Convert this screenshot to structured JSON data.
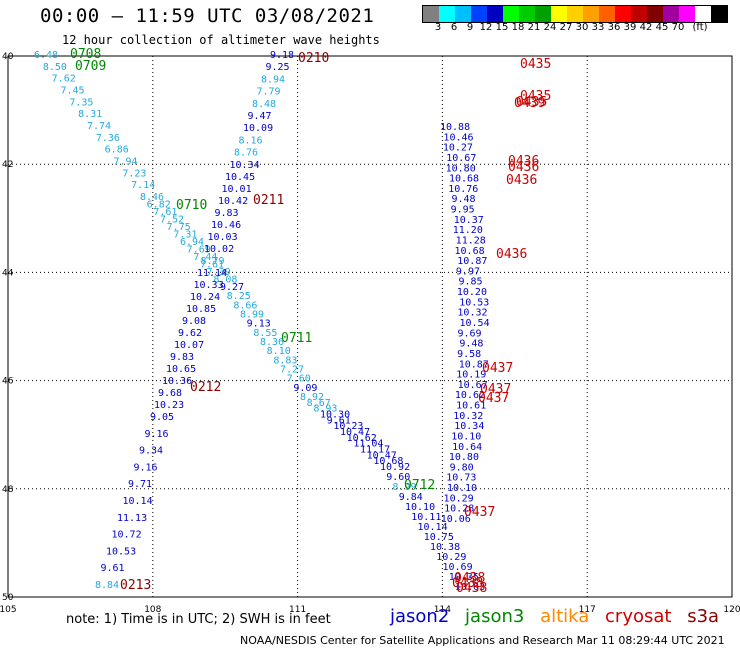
{
  "header": {
    "title": "00:00 – 11:59 UTC 03/08/2021",
    "subtitle": "12 hour collection of altimeter wave heights"
  },
  "colorbar": {
    "colors": [
      "#808080",
      "#00ffff",
      "#00bfff",
      "#0040ff",
      "#0000c0",
      "#00ff00",
      "#00cc00",
      "#00a000",
      "#ffff00",
      "#ffd000",
      "#ffa000",
      "#ff6000",
      "#ff0000",
      "#c00000",
      "#800000",
      "#a000a0",
      "#ff00ff",
      "#ffffff",
      "#000000"
    ],
    "labels": [
      "3",
      "6",
      "9",
      "12",
      "15",
      "18",
      "21",
      "24",
      "27",
      "30",
      "33",
      "36",
      "39",
      "42",
      "45",
      "70",
      "(ft)"
    ]
  },
  "axes": {
    "lon_ticks": [
      "105",
      "108",
      "111",
      "114",
      "117",
      "120"
    ],
    "lat_ticks": [
      "40",
      "42",
      "44",
      "46",
      "48",
      "50"
    ]
  },
  "colors": {
    "jason2": "#0000cc",
    "jason3": "#008800",
    "altika": "#ff8800",
    "cryosat": "#cc0000",
    "s3a": "#880000",
    "swh_light": "#22aadd"
  },
  "tracks": {
    "track_a": {
      "time_labels": [
        "0708",
        "0709",
        "0710",
        "0711",
        "0712"
      ],
      "values": [
        "6.48",
        "8.50",
        "7.62",
        "7.45",
        "7.35",
        "8.31",
        "7.74",
        "7.36",
        "6.86",
        "7.94",
        "7.23",
        "7.14",
        "8.46",
        "6.82",
        "7.61",
        "7.52",
        "7.75",
        "7.31",
        "6.94",
        "7.69",
        "7.44",
        "7.61",
        "7.39",
        "8.08",
        "9.27",
        "8.25",
        "8.66",
        "8.99",
        "9.13",
        "8.55",
        "8.36",
        "8.10",
        "8.83",
        "7.27",
        "7.60",
        "9.09",
        "8.92",
        "8.67",
        "8.93",
        "10.30",
        "9.61",
        "10.23",
        "10.47",
        "10.62",
        "11.04",
        "11.17",
        "10.47",
        "10.68",
        "10.92",
        "9.60",
        "8.99",
        "9.84",
        "10.10",
        "10.11",
        "10.14",
        "10.75",
        "10.38",
        "10.29",
        "10.69",
        "10.35",
        "10.63"
      ]
    },
    "track_b": {
      "time_labels": [
        "0210",
        "0211",
        "0212",
        "0213"
      ],
      "values": [
        "9.18",
        "9.25",
        "8.94",
        "7.79",
        "8.48",
        "9.47",
        "10.09",
        "8.16",
        "8.76",
        "10.34",
        "10.45",
        "10.01",
        "10.42",
        "9.83",
        "10.46",
        "10.03",
        "10.02",
        "8.79",
        "11.14",
        "10.33",
        "10.24",
        "10.85",
        "9.08",
        "9.62",
        "10.07",
        "9.83",
        "10.65",
        "10.36",
        "9.68",
        "10.23",
        "9.05",
        "9.16",
        "9.34",
        "9.16",
        "9.71",
        "10.14",
        "11.13",
        "10.72",
        "10.53",
        "9.61",
        "8.84"
      ]
    },
    "track_c": {
      "time_labels": [
        "0435",
        "0435",
        "0435",
        "0439",
        "0436",
        "0436",
        "0436",
        "0436",
        "0437",
        "0437",
        "0437",
        "0437",
        "0438",
        "0438",
        "0438"
      ],
      "values": [
        "10.88",
        "10.46",
        "10.27",
        "10.67",
        "10.80",
        "10.68",
        "10.76",
        "9.48",
        "9.95",
        "10.37",
        "11.20",
        "11.28",
        "10.68",
        "10.87",
        "9.97",
        "9.85",
        "10.20",
        "10.53",
        "10.32",
        "10.54",
        "9.69",
        "9.48",
        "9.58",
        "10.87",
        "10.19",
        "10.67",
        "10.62",
        "10.61",
        "10.32",
        "10.34",
        "10.10",
        "10.64",
        "10.80",
        "9.80",
        "10.73",
        "10.10",
        "10.29",
        "10.28",
        "10.06"
      ]
    }
  },
  "note": "note: 1) Time is in UTC; 2) SWH is in feet",
  "legend": {
    "jason2": "jason2",
    "jason3": "jason3",
    "altika": "altika",
    "cryosat": "cryosat",
    "s3a": "s3a"
  },
  "credit": "NOAA/NESDIS Center for Satellite Applications and Research    Mar 11 08:29:44 UTC 2021"
}
